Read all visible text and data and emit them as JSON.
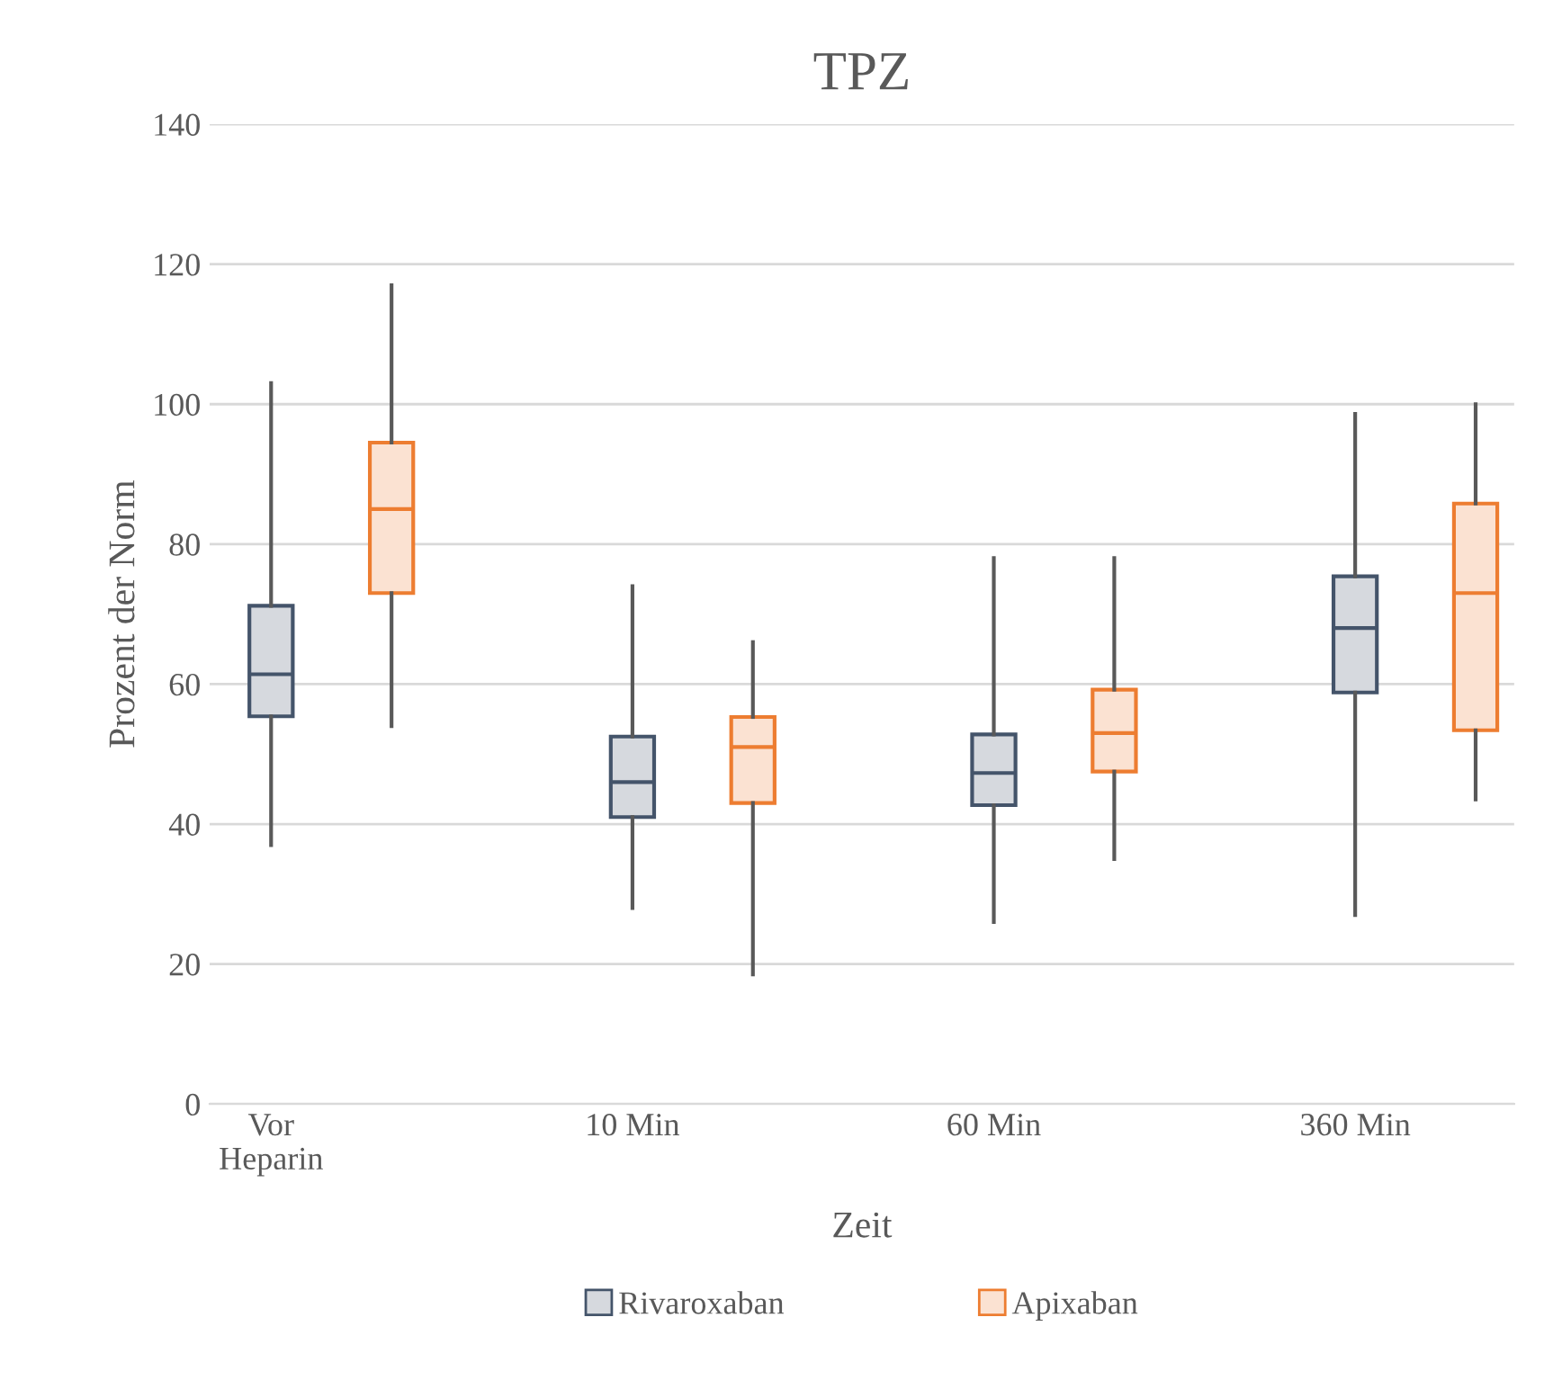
{
  "chart_data": {
    "type": "box",
    "title": "TPZ",
    "xlabel": "Zeit",
    "ylabel": "Prozent der Norm",
    "categories": [
      "Vor\nHeparin",
      "10 Min",
      "60 Min",
      "360 Min"
    ],
    "ylim": [
      0,
      140
    ],
    "yticks": [
      0,
      20,
      40,
      60,
      80,
      100,
      120,
      140
    ],
    "grid": "y",
    "legend": "bottom",
    "series": [
      {
        "name": "Rivaroxaban",
        "color": "#44546a",
        "boxes": [
          {
            "low": 37,
            "q1": 55.4,
            "median": 61.4,
            "q3": 71.2,
            "high": 103
          },
          {
            "low": 28,
            "q1": 41,
            "median": 46,
            "q3": 52.5,
            "high": 74
          },
          {
            "low": 26,
            "q1": 42.7,
            "median": 47.3,
            "q3": 52.8,
            "high": 78
          },
          {
            "low": 27,
            "q1": 58.8,
            "median": 68,
            "q3": 75.4,
            "high": 98.6
          }
        ]
      },
      {
        "name": "Apixaban",
        "color": "#ed7d31",
        "boxes": [
          {
            "low": 54,
            "q1": 73,
            "median": 85,
            "q3": 94.5,
            "high": 117
          },
          {
            "low": 18.5,
            "q1": 43,
            "median": 51,
            "q3": 55.3,
            "high": 66
          },
          {
            "low": 35,
            "q1": 47.5,
            "median": 53,
            "q3": 59.2,
            "high": 78
          },
          {
            "low": 43.5,
            "q1": 53.4,
            "median": 73,
            "q3": 85.8,
            "high": 100
          }
        ]
      }
    ]
  }
}
